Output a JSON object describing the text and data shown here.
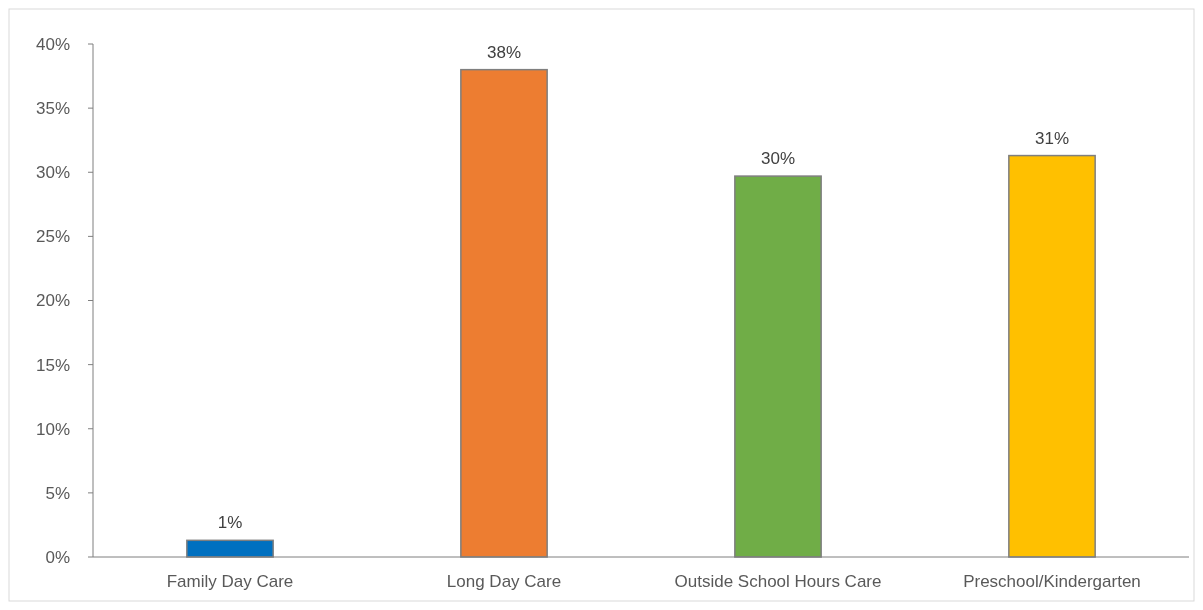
{
  "chart_data": {
    "type": "bar",
    "categories": [
      "Family Day Care",
      "Long Day Care",
      "Outside School Hours Care",
      "Preschool/Kindergarten"
    ],
    "values": [
      1.3,
      38.0,
      29.7,
      31.3
    ],
    "colors": [
      "#0070c0",
      "#ed7d31",
      "#70ad47",
      "#ffc000"
    ],
    "value_labels": [
      "1%",
      "38%",
      "30%",
      "31%"
    ],
    "ylim": [
      0,
      40
    ],
    "yticks": [
      {
        "value": 0,
        "label": "0%"
      },
      {
        "value": 5,
        "label": "5%"
      },
      {
        "value": 10,
        "label": "10%"
      },
      {
        "value": 15,
        "label": "15%"
      },
      {
        "value": 20,
        "label": "20%"
      },
      {
        "value": 25,
        "label": "25%"
      },
      {
        "value": 30,
        "label": "30%"
      },
      {
        "value": 35,
        "label": "35%"
      },
      {
        "value": 40,
        "label": "40%"
      }
    ],
    "grid": false
  }
}
